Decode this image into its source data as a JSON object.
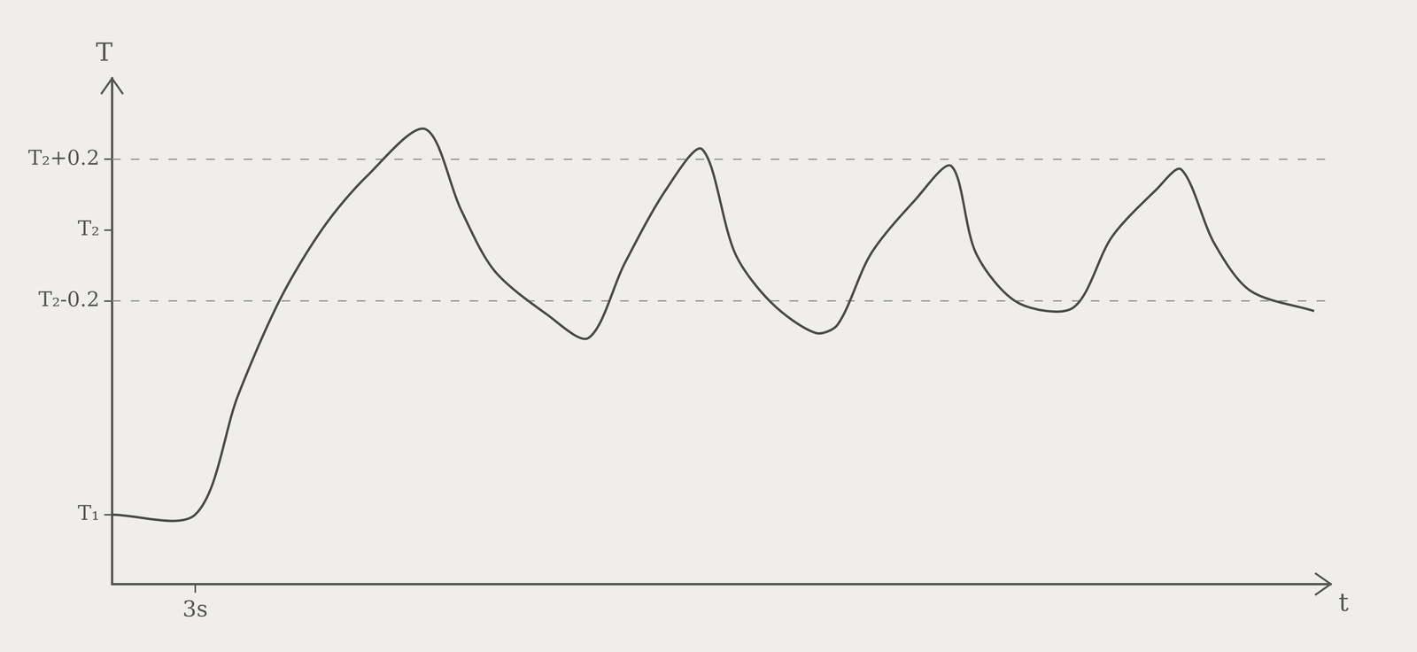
{
  "chart_data": {
    "type": "line",
    "x_label": "t",
    "y_label": "T",
    "x": [
      0,
      3,
      4.55,
      6.1,
      7.65,
      9.2,
      11.3,
      12.6,
      13.8,
      15.7,
      17.2,
      18.5,
      20.0,
      21.3,
      22.5,
      23.8,
      25.4,
      26.2,
      27.4,
      29.0,
      30.3,
      31.2,
      32.7,
      34.7,
      36.1,
      37.7,
      38.6,
      39.8,
      41.1,
      43.4
    ],
    "values": [
      2.06,
      2.06,
      5.6,
      8.5,
      10.6,
      12.1,
      13.5,
      11.1,
      9.3,
      8.0,
      7.3,
      9.5,
      11.7,
      12.9,
      9.8,
      8.35,
      7.45,
      7.7,
      9.8,
      11.4,
      12.4,
      9.8,
      8.35,
      8.2,
      10.3,
      11.7,
      12.3,
      10.1,
      8.7,
      8.1
    ],
    "color": "#4a4a4a",
    "xlim": [
      0,
      44
    ],
    "ylim": [
      0,
      15
    ],
    "xticks": [
      {
        "value": 3,
        "label": "3s"
      }
    ],
    "yticks": [
      {
        "value": 2.06,
        "label": "T₁"
      },
      {
        "value": 8.4,
        "label": "T₂-0.2"
      },
      {
        "value": 10.5,
        "label": "T₂"
      },
      {
        "value": 12.6,
        "label": "T₂+0.2"
      }
    ],
    "reference_lines": [
      8.4,
      12.6
    ],
    "grid": false,
    "line_style": "solid",
    "marker": "none"
  }
}
